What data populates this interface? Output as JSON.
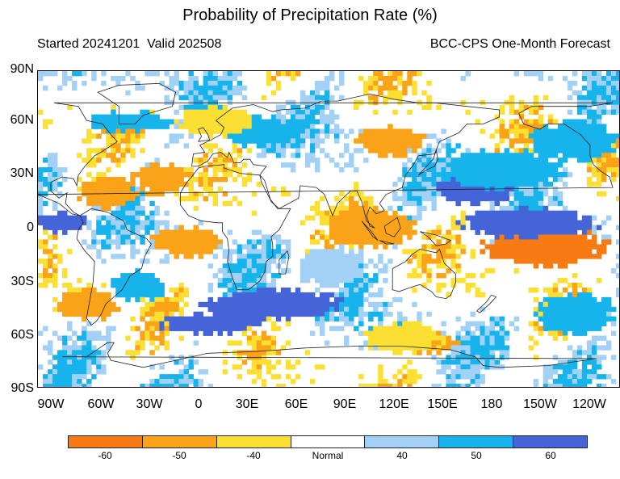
{
  "title": "Probability of Precipitation Rate (%)",
  "subtitle_left": "Started 20241201  Valid 202508",
  "subtitle_right": "BCC-CPS One-Month Forecast",
  "y_labels": [
    "90N",
    "60N",
    "30N",
    "0",
    "30S",
    "60S",
    "90S"
  ],
  "x_labels": [
    "90W",
    "60W",
    "30W",
    "0",
    "30E",
    "60E",
    "90E",
    "120E",
    "150E",
    "180",
    "150W",
    "120W"
  ],
  "colorbar": {
    "labels": [
      "-60",
      "-50",
      "-40",
      "Normal",
      "40",
      "50",
      "60"
    ],
    "colors": [
      "#f77b12",
      "#faa319",
      "#fbe033",
      "#ffffff",
      "#a3d1f6",
      "#17b4ec",
      "#4464d8"
    ]
  }
}
